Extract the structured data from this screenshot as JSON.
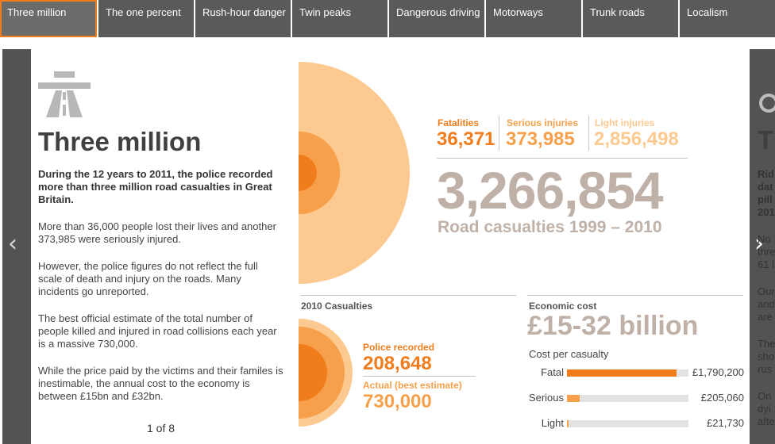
{
  "tabs": [
    {
      "label": "Three million"
    },
    {
      "label": "The one percent"
    },
    {
      "label": "Rush-hour danger"
    },
    {
      "label": "Twin peaks"
    },
    {
      "label": "Dangerous driving"
    },
    {
      "label": "Motorways"
    },
    {
      "label": "Trunk roads"
    },
    {
      "label": "Localism"
    }
  ],
  "article": {
    "title": "Three million",
    "lead": "During the 12 years to 2011, the police recorded more than three million road casualties in Great Britain.",
    "paragraphs": [
      "More than 36,000 people lost their lives and another 373,985 were seriously injured.",
      "However, the police figures do not reflect the full scale of death and injury on the roads. Many incidents go unreported.",
      "The best official estimate of the total number of people killed and injured in road collisions each year is a massive 730,000.",
      "While the price paid by the victims and their familes is inestimable, the annual cost to the economy is between £15bn and £32bn."
    ],
    "pager": "1 of 8"
  },
  "totals": {
    "fatalities_label": "Fatalities",
    "fatalities_value": "36,371",
    "serious_label": "Serious injuries",
    "serious_value": "373,985",
    "light_label": "Light injuries",
    "light_value": "2,856,498",
    "total_value": "3,266,854",
    "total_caption": "Road casualties 1999 – 2010"
  },
  "casualties_2010": {
    "title": "2010 Casualties",
    "police_label": "Police recorded",
    "police_value": "208,648",
    "actual_label": "Actual (best estimate)",
    "actual_value": "730,000"
  },
  "economic": {
    "title": "Economic cost",
    "value": "£15-32 billion",
    "cost_caption": "Cost per casualty",
    "rows": [
      {
        "label": "Fatal",
        "value": "£1,790,200",
        "fraction": 0.9
      },
      {
        "label": "Serious",
        "value": "£205,060",
        "fraction": 0.103
      },
      {
        "label": "Light",
        "value": "£21,730",
        "fraction": 0.011
      }
    ]
  },
  "colors": {
    "dark_orange": "#f07c1c",
    "mid_orange": "#f7a04b",
    "light_orange": "#fcc990",
    "taupe": "#bfb1a7",
    "tab_bg": "#5a5a5a"
  },
  "chart_data": [
    {
      "type": "pie",
      "title": "",
      "categories": [
        "Fatalities",
        "Serious injuries",
        "Light injuries"
      ],
      "values": [
        36371,
        373985,
        2856498
      ]
    },
    {
      "type": "bar",
      "title": "Cost per casualty",
      "categories": [
        "Fatal",
        "Serious",
        "Light"
      ],
      "values": [
        1790200,
        205060,
        21730
      ]
    }
  ],
  "peek": {
    "title_initial": "T",
    "lines": [
      "Rid",
      "dat",
      "pill",
      "201"
    ],
    "lines2": [
      "No",
      "thre",
      "61 l"
    ],
    "lines3": [
      "Our",
      "and",
      "are"
    ],
    "lines4": [
      "The",
      "sho",
      "rus"
    ],
    "lines5": [
      "On",
      "dyi",
      "afte"
    ]
  }
}
